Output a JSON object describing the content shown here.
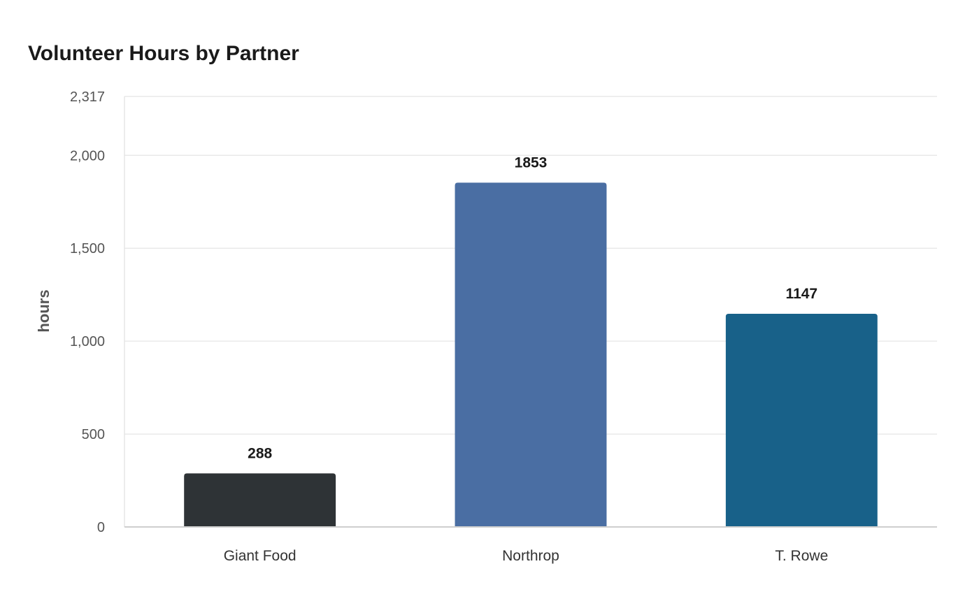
{
  "chart_data": {
    "type": "bar",
    "title": "Volunteer Hours by Partner",
    "xlabel": "",
    "ylabel": "hours",
    "categories": [
      "Giant Food",
      "Northrop",
      "T. Rowe"
    ],
    "values": [
      288,
      1853,
      1147
    ],
    "value_labels": [
      "288",
      "1853",
      "1147"
    ],
    "colors": [
      "#2e3336",
      "#4a6ea3",
      "#186189"
    ],
    "ylim": [
      0,
      2317
    ],
    "yticks": [
      0,
      500,
      1000,
      1500,
      2000,
      2317
    ],
    "ytick_labels": [
      "0",
      "500",
      "1,000",
      "1,500",
      "2,000",
      "2,317"
    ],
    "grid": true,
    "legend": "none"
  }
}
